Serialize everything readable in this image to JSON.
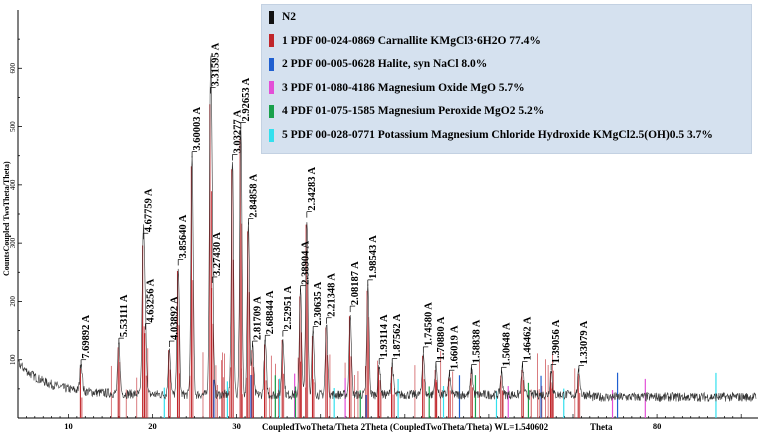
{
  "chart_data": {
    "type": "line",
    "title": "",
    "xlabel": "CoupledTwoTheta/Theta 2Theta (CoupledTwoTheta/Theta) WL=1.540602",
    "xlabel_suffix": "Theta",
    "ylabel": "CountsCoupled TwoTheta/Theta)",
    "xlim": [
      4,
      92
    ],
    "ylim": [
      0,
      700
    ],
    "x_ticks": [
      10,
      20,
      30,
      80
    ],
    "y_ticks": [
      100,
      200,
      300,
      400,
      500,
      600
    ],
    "colors": {
      "measured": "#333333",
      "carnallite": "#c0262b",
      "halite": "#1f5fd0",
      "mgo": "#e34fd7",
      "mgo2": "#19a04b",
      "kmgcl": "#33e0ee"
    },
    "legend": [
      {
        "label": "N2",
        "color": "#111111"
      },
      {
        "label": "1 PDF 00-024-0869 Carnallite KMgCl3·6H2O    77.4%",
        "color": "#c0262b"
      },
      {
        "label": "2 PDF 00-005-0628 Halite, syn NaCl    8.0%",
        "color": "#1f5fd0"
      },
      {
        "label": "3 PDF 01-080-4186 Magnesium Oxide MgO    5.7%",
        "color": "#e34fd7"
      },
      {
        "label": "4 PDF 01-075-1585 Magnesium Peroxide MgO2    5.2%",
        "color": "#19a04b"
      },
      {
        "label": "5 PDF 00-028-0771 Potassium Magnesium Chloride Hydroxide KMgCl2.5(OH)0.5    3.7%",
        "color": "#33e0ee"
      }
    ],
    "peaks": [
      {
        "x": 11.5,
        "y": 88,
        "label": "7.69892 A"
      },
      {
        "x": 16.0,
        "y": 125,
        "label": "5.53111 A"
      },
      {
        "x": 18.9,
        "y": 305,
        "label": "4.67759 A"
      },
      {
        "x": 19.15,
        "y": 150,
        "label": "4.63256 A"
      },
      {
        "x": 22.0,
        "y": 120,
        "label": "4.03892 A"
      },
      {
        "x": 23.05,
        "y": 260,
        "label": "3.85640 A"
      },
      {
        "x": 24.7,
        "y": 445,
        "label": "3.60003 A"
      },
      {
        "x": 26.9,
        "y": 555,
        "label": "3.31595 A"
      },
      {
        "x": 27.1,
        "y": 230,
        "label": "3.27430 A"
      },
      {
        "x": 29.5,
        "y": 440,
        "label": "3.03277 A"
      },
      {
        "x": 30.5,
        "y": 495,
        "label": "2.92653 A"
      },
      {
        "x": 31.4,
        "y": 330,
        "label": "2.84858 A"
      },
      {
        "x": 31.9,
        "y": 120,
        "label": "2.81709 A"
      },
      {
        "x": 33.4,
        "y": 130,
        "label": "2.68844 A"
      },
      {
        "x": 35.5,
        "y": 138,
        "label": "2.52951 A"
      },
      {
        "x": 37.6,
        "y": 215,
        "label": "2.38904 A"
      },
      {
        "x": 38.35,
        "y": 342,
        "label": "2.34283 A"
      },
      {
        "x": 39.1,
        "y": 145,
        "label": "2.30635 A"
      },
      {
        "x": 40.7,
        "y": 160,
        "label": "2.21348 A"
      },
      {
        "x": 43.5,
        "y": 180,
        "label": "2.08187 A"
      },
      {
        "x": 45.6,
        "y": 225,
        "label": "1.98543 A"
      },
      {
        "x": 46.95,
        "y": 90,
        "label": "1.93114 A"
      },
      {
        "x": 48.5,
        "y": 90,
        "label": "1.87562 A"
      },
      {
        "x": 52.2,
        "y": 110,
        "label": "1.74580 A"
      },
      {
        "x": 53.7,
        "y": 85,
        "label": "1.70880 A"
      },
      {
        "x": 55.3,
        "y": 70,
        "label": "1.66019 A"
      },
      {
        "x": 57.95,
        "y": 80,
        "label": "1.58838 A"
      },
      {
        "x": 61.5,
        "y": 75,
        "label": "1.50648 A"
      },
      {
        "x": 64.0,
        "y": 85,
        "label": "1.46462 A"
      },
      {
        "x": 67.4,
        "y": 80,
        "label": "1.39056 A"
      },
      {
        "x": 70.7,
        "y": 78,
        "label": "1.33079 A"
      }
    ]
  }
}
